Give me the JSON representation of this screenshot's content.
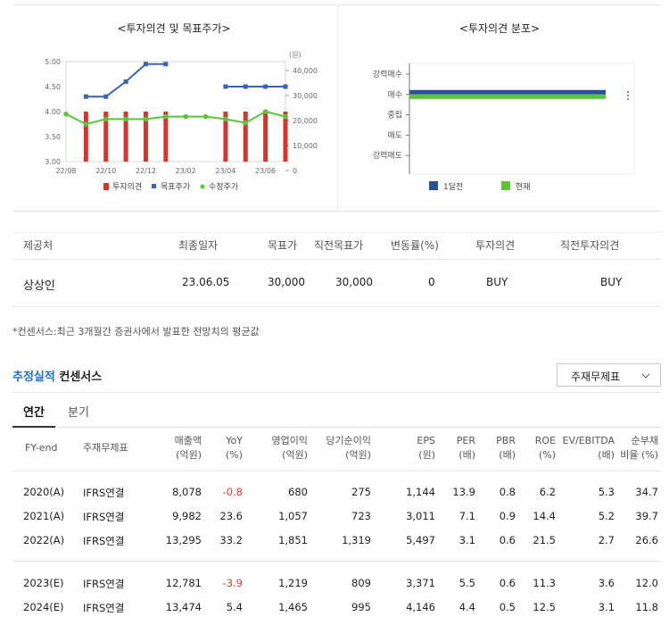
{
  "charts": {
    "left": {
      "title": "<투자의견 및 목표주가>",
      "unit_label": "(원)",
      "y_left_ticks": [
        "5.00",
        "4.50",
        "4.00",
        "3.50",
        "3.00"
      ],
      "y_right_ticks": [
        "40,000",
        "30,000",
        "20,000",
        "10,000",
        "0"
      ],
      "x_ticks": [
        "22/08",
        "22/10",
        "22/12",
        "23/02",
        "23/04",
        "23/06"
      ],
      "legend": [
        "투자의견",
        "목표주가",
        "수정주가"
      ]
    },
    "right": {
      "title": "<투자의견 분포>",
      "categories": [
        "강력매수",
        "매수",
        "중립",
        "매도",
        "강력매도"
      ],
      "legend": [
        "1달전",
        "현재"
      ]
    }
  },
  "chart_data": [
    {
      "type": "bar+line",
      "title": "<투자의견 및 목표주가>",
      "ylabel_right": "(원)",
      "ylim_left": [
        3.0,
        5.0
      ],
      "ylim_right": [
        0,
        40000
      ],
      "x": [
        "22/08",
        "22/09",
        "22/10",
        "22/11",
        "22/12",
        "23/01",
        "23/02",
        "23/03",
        "23/04",
        "23/05",
        "23/06",
        "23/07"
      ],
      "series": [
        {
          "name": "투자의견",
          "axis": "left",
          "type": "bar",
          "color": "#d9342b",
          "values": [
            null,
            4.0,
            4.0,
            4.0,
            4.0,
            4.0,
            null,
            null,
            4.0,
            4.0,
            4.0,
            4.0
          ]
        },
        {
          "name": "목표주가",
          "axis": "right",
          "type": "line",
          "color": "#3a64b0",
          "values": [
            null,
            26000,
            26000,
            32000,
            39000,
            39000,
            null,
            null,
            30000,
            30000,
            30000,
            30000
          ]
        },
        {
          "name": "수정주가",
          "axis": "right",
          "type": "line",
          "color": "#5ac43a",
          "values": [
            19000,
            15000,
            17000,
            17000,
            17000,
            18000,
            18000,
            18000,
            17000,
            15500,
            20000,
            18000
          ]
        }
      ]
    },
    {
      "type": "bar",
      "orientation": "horizontal",
      "title": "<투자의견 분포>",
      "categories": [
        "강력매수",
        "매수",
        "중립",
        "매도",
        "강력매도"
      ],
      "series": [
        {
          "name": "1달전",
          "color": "#2b4f9e",
          "values": [
            0,
            1,
            0,
            0,
            0
          ]
        },
        {
          "name": "현재",
          "color": "#5ac43a",
          "values": [
            0,
            1,
            0,
            0,
            0
          ]
        }
      ],
      "xlim": [
        0,
        1
      ]
    }
  ],
  "consensus_table": {
    "headers": [
      "제공처",
      "최종일자",
      "목표가",
      "직전목표가",
      "변동률(%)",
      "투자의견",
      "직전투자의견"
    ],
    "row": [
      "상상인",
      "23.06.05",
      "30,000",
      "30,000",
      "0",
      "BUY",
      "BUY"
    ]
  },
  "footnote": "*컨센서스:최근 3개월간 증권사에서 발표한 전망치의 평균값",
  "section": {
    "accent": "추정실적",
    "rest": " 컨센서스"
  },
  "select": {
    "value": "주재무제표"
  },
  "tabs": {
    "annual": "연간",
    "quarter": "분기"
  },
  "fin_table": {
    "headers": [
      [
        "FY-end",
        ""
      ],
      [
        "주재무제표",
        ""
      ],
      [
        "매출액",
        "(억원)"
      ],
      [
        "YoY",
        "(%)"
      ],
      [
        "영업이익",
        "(억원)"
      ],
      [
        "당기순이익",
        "(억원)"
      ],
      [
        "EPS",
        "(원)"
      ],
      [
        "PER",
        "(배)"
      ],
      [
        "PBR",
        "(배)"
      ],
      [
        "ROE",
        "(%)"
      ],
      [
        "EV/EBITDA",
        "(배)"
      ],
      [
        "순부채",
        "비율 (%)"
      ]
    ],
    "rows": [
      [
        "2020(A)",
        "IFRS연결",
        "8,078",
        "-0.8",
        "680",
        "275",
        "1,144",
        "13.9",
        "0.8",
        "6.2",
        "5.3",
        "34.7"
      ],
      [
        "2021(A)",
        "IFRS연결",
        "9,982",
        "23.6",
        "1,057",
        "723",
        "3,011",
        "7.1",
        "0.9",
        "14.4",
        "5.2",
        "39.7"
      ],
      [
        "2022(A)",
        "IFRS연결",
        "13,295",
        "33.2",
        "1,851",
        "1,319",
        "5,497",
        "3.1",
        "0.6",
        "21.5",
        "2.7",
        "26.6"
      ],
      [
        "2023(E)",
        "IFRS연결",
        "12,781",
        "-3.9",
        "1,219",
        "809",
        "3,371",
        "5.5",
        "0.6",
        "11.3",
        "3.6",
        "12.0"
      ],
      [
        "2024(E)",
        "IFRS연결",
        "13,474",
        "5.4",
        "1,465",
        "995",
        "4,146",
        "4.4",
        "0.5",
        "12.5",
        "3.1",
        "11.8"
      ]
    ]
  }
}
